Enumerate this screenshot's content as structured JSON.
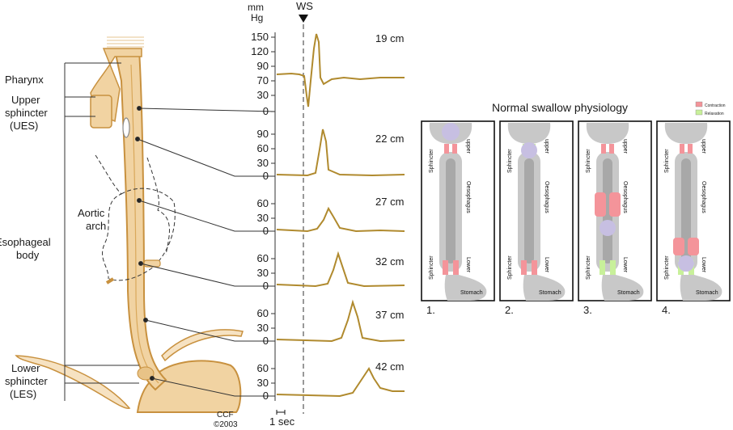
{
  "colors": {
    "tissue": "#f1d3a2",
    "tissue_dark": "#c8913f",
    "trace": "#b08a2e",
    "contraction": "#f4949a",
    "relaxation": "#c8f09a",
    "panel_grey": "#c8c8c8",
    "panel_dark": "#a8a8a8",
    "bolus": "#c7bfe2"
  },
  "anatomy": {
    "labels": {
      "pharynx": "Pharynx",
      "ues_1": "Upper",
      "ues_2": "sphincter",
      "ues_3": "(UES)",
      "aortic_1": "Aortic",
      "aortic_2": "arch",
      "body_1": "Esophageal",
      "body_2": "body",
      "les_1": "Lower",
      "les_2": "sphincter",
      "les_3": "(LES)"
    },
    "copyright_1": "CCF",
    "copyright_2": "©2003"
  },
  "manometry": {
    "unit_1": "mm",
    "unit_2": "Hg",
    "ws_label": "WS",
    "time_label": "1 sec",
    "channels": [
      {
        "depth": "19 cm",
        "ticks": [
          "150",
          "120",
          "90",
          "70",
          "30",
          "0"
        ]
      },
      {
        "depth": "22 cm",
        "ticks": [
          "90",
          "60",
          "30",
          "0"
        ]
      },
      {
        "depth": "27 cm",
        "ticks": [
          "60",
          "30",
          "0"
        ]
      },
      {
        "depth": "32 cm",
        "ticks": [
          "60",
          "30",
          "0"
        ]
      },
      {
        "depth": "37 cm",
        "ticks": [
          "60",
          "30",
          "0"
        ]
      },
      {
        "depth": "42 cm",
        "ticks": [
          "60",
          "30",
          "0"
        ]
      }
    ]
  },
  "physiology": {
    "title": "Normal swallow physiology",
    "legend": {
      "contraction": "Contraction",
      "relaxation": "Relaxation"
    },
    "labels": {
      "upper": "upper",
      "sphincter": "Sphincter",
      "oesophagus": "Oesophagus",
      "lower": "Lower",
      "stomach": "Stomach"
    },
    "panels": [
      {
        "number": "1.",
        "upper": "contraction",
        "lower": "contraction",
        "bolus": "top"
      },
      {
        "number": "2.",
        "upper": "relaxation",
        "lower": "contraction",
        "bolus": "upper"
      },
      {
        "number": "3.",
        "upper": "contraction",
        "lower": "relaxation",
        "bolus": "middle"
      },
      {
        "number": "4.",
        "upper": "contraction",
        "lower": "relaxation",
        "bolus": "lower"
      }
    ]
  }
}
